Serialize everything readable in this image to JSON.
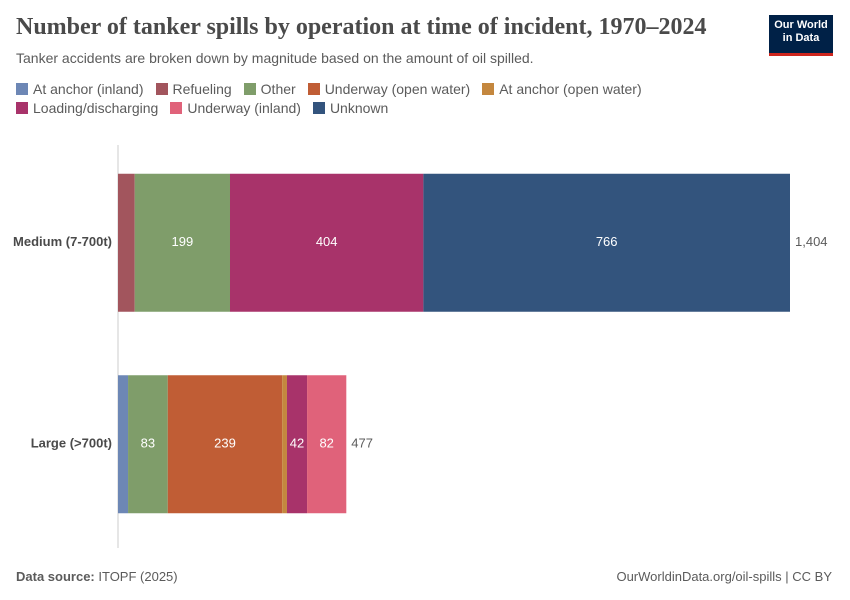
{
  "chart_data": {
    "type": "stacked-bar-horizontal",
    "title": "Number of tanker spills by operation at time of incident, 1970–2024",
    "subtitle": "Tanker accidents are broken down by magnitude based on the amount of oil spilled.",
    "logo": [
      "Our World",
      "in Data"
    ],
    "categories": [
      "Medium (7-700t)",
      "Large (>700t)"
    ],
    "series": [
      {
        "name": "At anchor (inland)",
        "color": "#6d87b5",
        "values": [
          null,
          21
        ]
      },
      {
        "name": "Refueling",
        "color": "#a2555d",
        "values": [
          35,
          null
        ]
      },
      {
        "name": "Other",
        "color": "#7f9d6a",
        "values": [
          199,
          83
        ]
      },
      {
        "name": "Underway (open water)",
        "color": "#c05d35",
        "values": [
          null,
          239
        ]
      },
      {
        "name": "At anchor (open water)",
        "color": "#c4873e",
        "values": [
          null,
          10
        ]
      },
      {
        "name": "Loading/discharging",
        "color": "#a8336a",
        "values": [
          404,
          42
        ]
      },
      {
        "name": "Underway (inland)",
        "color": "#e0627a",
        "values": [
          null,
          82
        ]
      },
      {
        "name": "Unknown",
        "color": "#33547d",
        "values": [
          766,
          null
        ]
      }
    ],
    "totals": [
      {
        "value": 1404,
        "label": "1,404"
      },
      477
    ],
    "xlim": [
      0,
      1404
    ],
    "source_label": "Data source:",
    "source": "ITOPF (2025)",
    "credit": "OurWorldinData.org/oil-spills | CC BY"
  }
}
